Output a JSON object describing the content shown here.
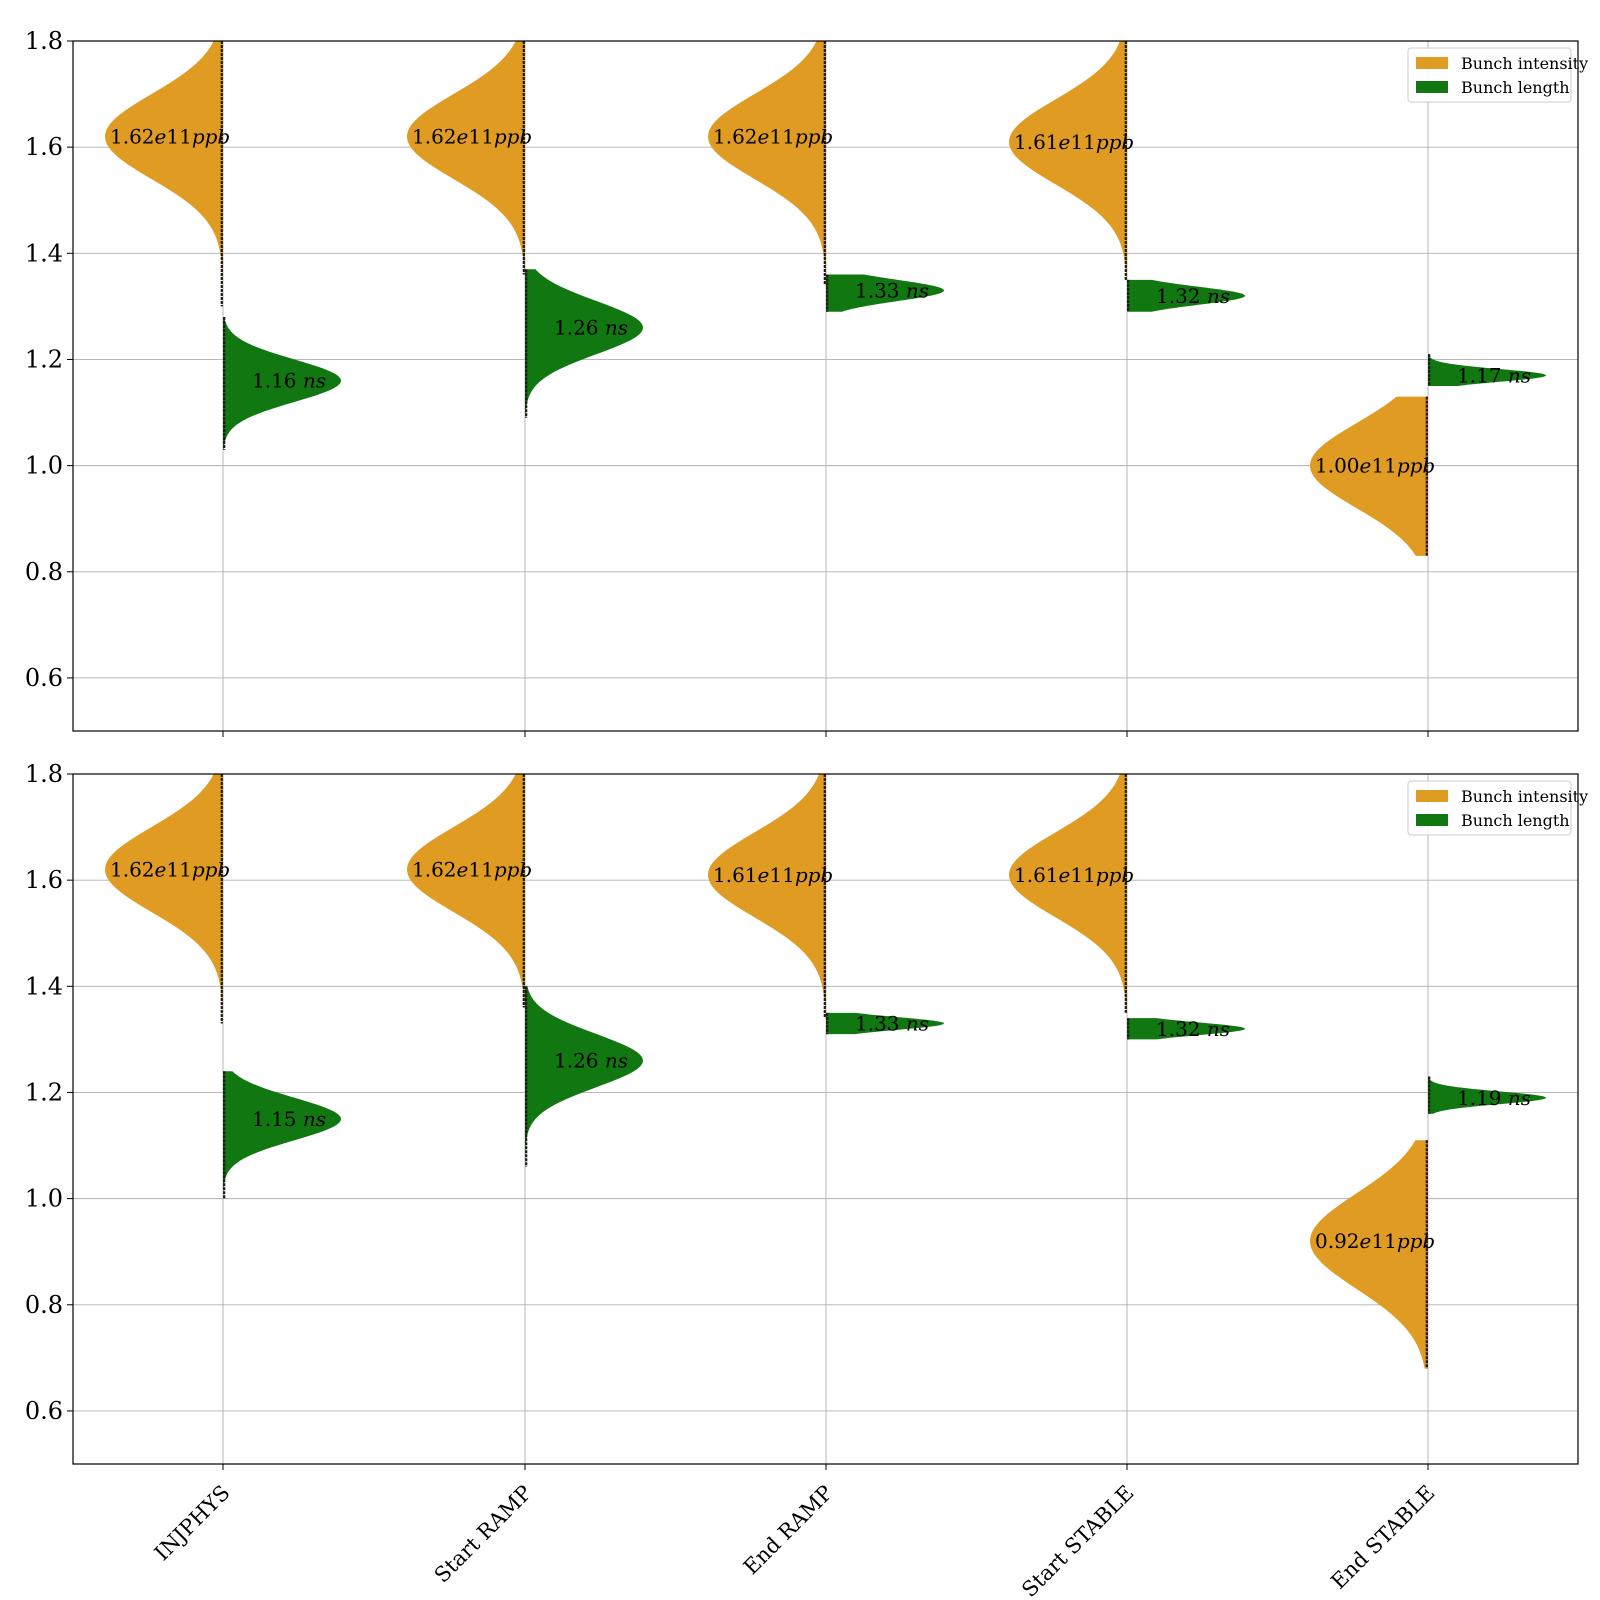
{
  "chart_data": [
    {
      "type": "violin",
      "panel": "top",
      "categories": [
        "INJPHYS",
        "Start RAMP",
        "End RAMP",
        "Start STABLE",
        "End STABLE"
      ],
      "ylim": [
        0.5,
        1.8
      ],
      "yticks": [
        "0.6",
        "0.8",
        "1.0",
        "1.2",
        "1.4",
        "1.6",
        "1.8"
      ],
      "grid": true,
      "legend_position": "upper-right",
      "series": [
        {
          "name": "Bunch intensity",
          "color": "#E09B22",
          "side": "left",
          "unit": "e11ppb",
          "peaks": [
            1.62,
            1.62,
            1.62,
            1.61,
            1.0
          ],
          "spreads": [
            0.08,
            0.08,
            0.08,
            0.08,
            0.08
          ],
          "lows": [
            1.3,
            1.36,
            1.34,
            1.35,
            0.83
          ],
          "highs": [
            1.8,
            1.8,
            1.8,
            1.8,
            1.13
          ],
          "labels": [
            "1.62",
            "1.62",
            "1.62",
            "1.61",
            "1.00"
          ]
        },
        {
          "name": "Bunch length",
          "color": "#117711",
          "side": "right",
          "unit": "ns",
          "peaks": [
            1.16,
            1.26,
            1.33,
            1.32,
            1.17
          ],
          "spreads": [
            0.04,
            0.05,
            0.02,
            0.017,
            0.012
          ],
          "lows": [
            1.03,
            1.09,
            1.29,
            1.29,
            1.15
          ],
          "highs": [
            1.28,
            1.37,
            1.36,
            1.35,
            1.21
          ],
          "labels": [
            "1.16",
            "1.26",
            "1.33",
            "1.32",
            "1.17"
          ]
        }
      ]
    },
    {
      "type": "violin",
      "panel": "bottom",
      "categories": [
        "INJPHYS",
        "Start RAMP",
        "End RAMP",
        "Start STABLE",
        "End STABLE"
      ],
      "ylim": [
        0.5,
        1.8
      ],
      "yticks": [
        "0.6",
        "0.8",
        "1.0",
        "1.2",
        "1.4",
        "1.6",
        "1.8"
      ],
      "grid": true,
      "legend_position": "upper-right",
      "series": [
        {
          "name": "Bunch intensity",
          "color": "#E09B22",
          "side": "left",
          "unit": "e11ppb",
          "peaks": [
            1.62,
            1.62,
            1.61,
            1.61,
            0.92
          ],
          "spreads": [
            0.08,
            0.08,
            0.08,
            0.08,
            0.09
          ],
          "lows": [
            1.33,
            1.36,
            1.34,
            1.35,
            0.68
          ],
          "highs": [
            1.8,
            1.8,
            1.8,
            1.8,
            1.11
          ],
          "labels": [
            "1.62",
            "1.62",
            "1.61",
            "1.61",
            "0.92"
          ]
        },
        {
          "name": "Bunch length",
          "color": "#117711",
          "side": "right",
          "unit": "ns",
          "peaks": [
            1.15,
            1.26,
            1.33,
            1.32,
            1.19
          ],
          "spreads": [
            0.04,
            0.05,
            0.012,
            0.012,
            0.012
          ],
          "lows": [
            1.0,
            1.06,
            1.31,
            1.3,
            1.16
          ],
          "highs": [
            1.24,
            1.4,
            1.35,
            1.34,
            1.23
          ],
          "labels": [
            "1.15",
            "1.26",
            "1.33",
            "1.32",
            "1.19"
          ]
        }
      ]
    }
  ],
  "icons": {
    "legend_swatch": "filled-rectangle"
  }
}
